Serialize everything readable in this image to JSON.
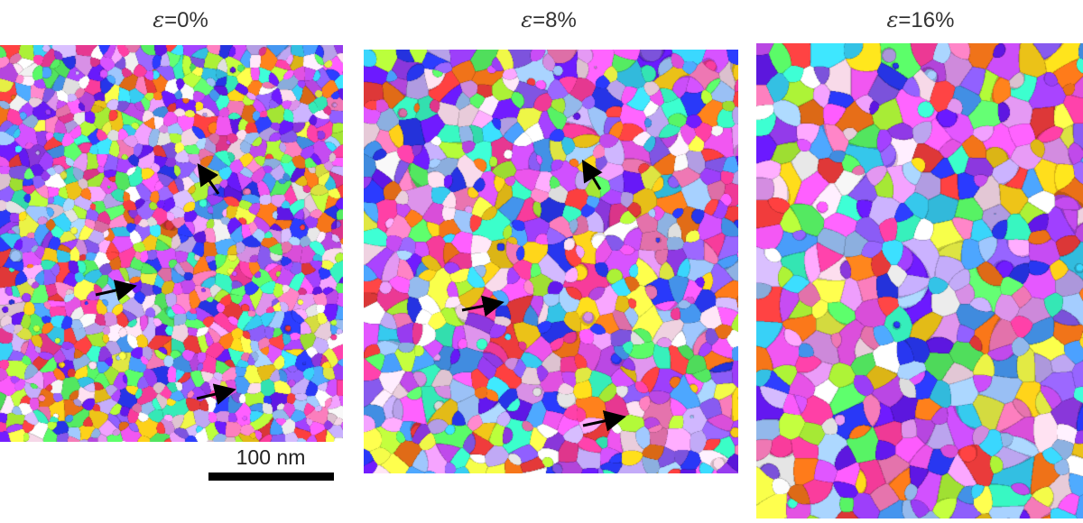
{
  "panels": [
    {
      "label": "ε=0%",
      "symbol": "ε",
      "value": "=0%"
    },
    {
      "label": "ε=8%",
      "symbol": "ε",
      "value": "=8%"
    },
    {
      "label": "ε=16%",
      "symbol": "ε",
      "value": "=16%"
    }
  ],
  "scale_bar": {
    "label": "100 nm"
  },
  "grain_palette": [
    "#ff3ea0",
    "#ff4040",
    "#ff7a1a",
    "#ffd21a",
    "#f7ff4a",
    "#b6ff3a",
    "#5cff6a",
    "#3affc8",
    "#3ad8ff",
    "#4aa0ff",
    "#2a3aff",
    "#6a1aff",
    "#a040ff",
    "#d050ff",
    "#ff5cff",
    "#f0a0ff",
    "#c8b0ff",
    "#a0c8ff",
    "#ffe0f0",
    "#ffffff",
    "#9060ff",
    "#ff80c0"
  ]
}
